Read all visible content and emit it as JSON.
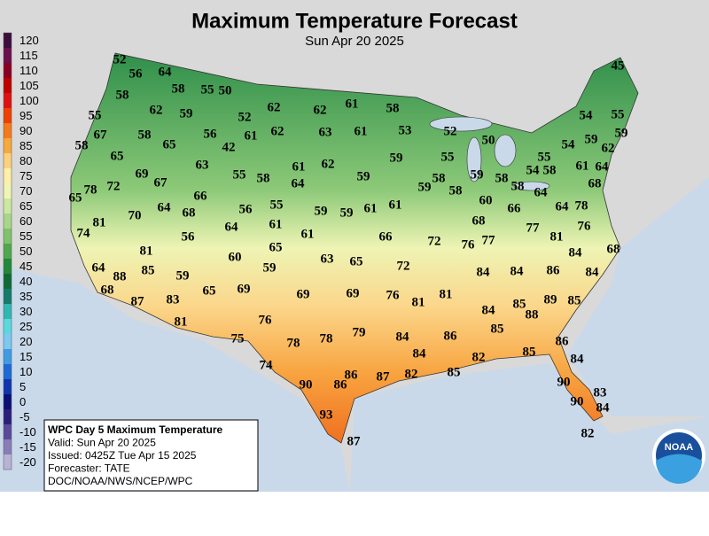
{
  "header": {
    "title": "Maximum Temperature Forecast",
    "subtitle": "Sun Apr 20 2025"
  },
  "legend": {
    "ticks": [
      120,
      115,
      110,
      105,
      100,
      95,
      90,
      85,
      80,
      75,
      70,
      65,
      60,
      55,
      50,
      45,
      40,
      35,
      30,
      25,
      20,
      15,
      10,
      5,
      0,
      -5,
      -10,
      -15,
      -20
    ],
    "colors": [
      "#3d0c3d",
      "#6b0f4f",
      "#8b0022",
      "#c00000",
      "#e01010",
      "#f04000",
      "#f57a1a",
      "#f8a83c",
      "#fdd07c",
      "#ffefa8",
      "#f0f5b5",
      "#cce8a0",
      "#a8d68a",
      "#7fc26b",
      "#4ea84f",
      "#22883a",
      "#0f6b36",
      "#137c6a",
      "#2fb7b2",
      "#5ad8e0",
      "#7cc8f0",
      "#3f9be6",
      "#1c6ad6",
      "#1034b0",
      "#0a1078",
      "#2b1f7c",
      "#5a4a9c",
      "#8a7cb8",
      "#b9b2d6"
    ]
  },
  "info": {
    "lines": [
      "WPC Day 5 Maximum Temperature",
      "Valid: Sun Apr 20 2025",
      "Issued: 0425Z Tue Apr 15 2025",
      "Forecaster: TATE",
      "DOC/NOAA/NWS/NCEP/WPC"
    ]
  },
  "logo": "NOAA",
  "temperatures": [
    52,
    56,
    64,
    58,
    55,
    50,
    45,
    58,
    62,
    59,
    52,
    62,
    62,
    61,
    58,
    55,
    54,
    55,
    67,
    58,
    65,
    56,
    61,
    62,
    63,
    61,
    53,
    52,
    50,
    54,
    59,
    62,
    59,
    58,
    65,
    42,
    63,
    61,
    62,
    59,
    55,
    55,
    61,
    64,
    54,
    58,
    69,
    67,
    55,
    58,
    64,
    59,
    58,
    59,
    58,
    64,
    68,
    78,
    72,
    59,
    58,
    58,
    65,
    66,
    55,
    60,
    66,
    64,
    78,
    64,
    68,
    56,
    59,
    59,
    61,
    61,
    81,
    70,
    64,
    61,
    68,
    77,
    76,
    74,
    56,
    61,
    66,
    72,
    76,
    77,
    81,
    68,
    65,
    81,
    60,
    63,
    65,
    72,
    84,
    64,
    88,
    85,
    59,
    59,
    84,
    84,
    86,
    84,
    68,
    65,
    69,
    69,
    69,
    76,
    81,
    89,
    85,
    87,
    83,
    81,
    84,
    85,
    88,
    81,
    76,
    85,
    79,
    84,
    86,
    86,
    75,
    78,
    78,
    85,
    84,
    82,
    84,
    74,
    86,
    87,
    82,
    85,
    90,
    86,
    90,
    83,
    90,
    84,
    93,
    87,
    82
  ]
}
